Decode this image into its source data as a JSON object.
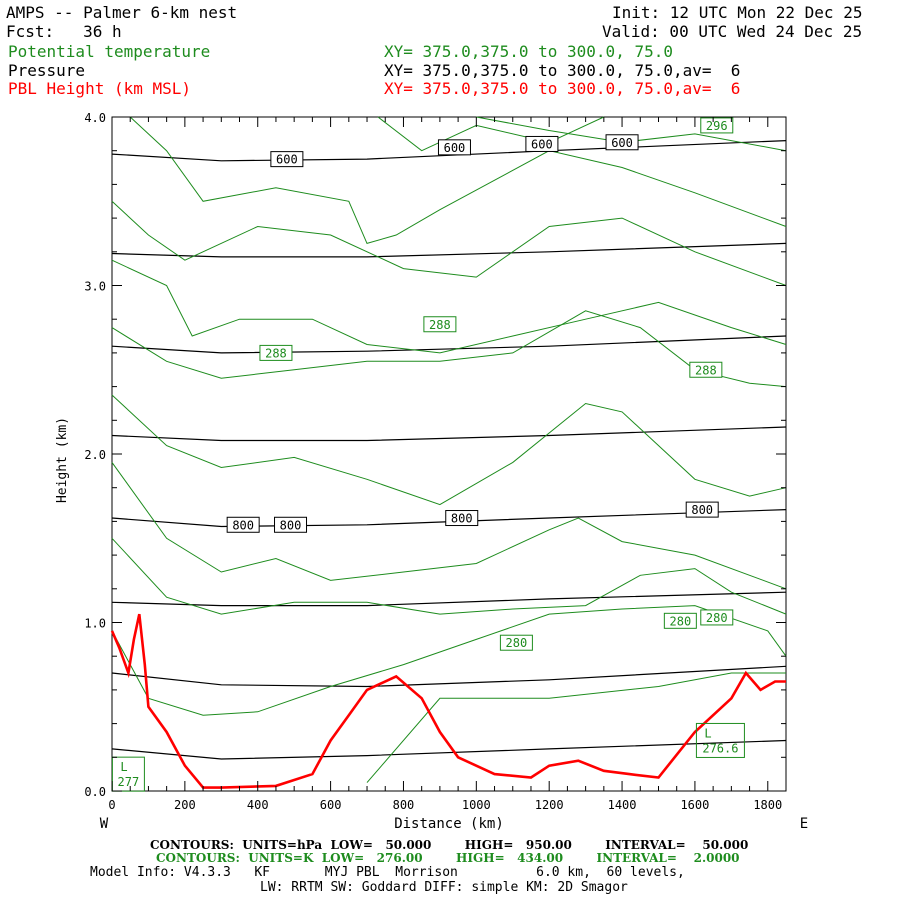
{
  "header": {
    "title": "AMPS -- Palmer 6-km nest",
    "forecast": "Fcst:   36 h",
    "init": "Init: 12 UTC Mon 22 Dec 25",
    "valid": "Valid: 00 UTC Wed 24 Dec 25",
    "field1_name": "Potential temperature",
    "field1_xy": "XY= 375.0,375.0 to 300.0, 75.0",
    "field2_name": "Pressure",
    "field2_xy": "XY= 375.0,375.0 to 300.0, 75.0,av=  6",
    "field3_name": "PBL Height (km MSL)",
    "field3_xy": "XY= 375.0,375.0 to 300.0, 75.0,av=  6"
  },
  "footer": {
    "pressure_contours": "CONTOURS:  UNITS=hPa  LOW=   50.000        HIGH=   950.00        INTERVAL=    50.000",
    "theta_contours": "CONTOURS:  UNITS=K  LOW=   276.00        HIGH=   434.00        INTERVAL=    2.0000",
    "model_info": "Model Info: V4.3.3   KF       MYJ PBL  Morrison          6.0 km,  60 levels,",
    "model_info2": "LW: RRTM SW: Goddard DIFF: simple KM: 2D Smagor"
  },
  "colors": {
    "theta": "#1e8c1e",
    "pressure": "#000000",
    "pbl": "#ff0000"
  },
  "chart_data": {
    "type": "line",
    "title": "AMPS -- Palmer 6-km nest",
    "xlabel": "Distance (km)",
    "ylabel": "Height (km)",
    "xlim": [
      0,
      1850
    ],
    "ylim": [
      0,
      4.0
    ],
    "x_ticks": [
      0,
      200,
      400,
      600,
      800,
      1000,
      1200,
      1400,
      1600,
      1800
    ],
    "y_ticks": [
      0.0,
      1.0,
      2.0,
      3.0,
      4.0
    ],
    "west_label": "W",
    "east_label": "E",
    "pressure_series": [
      {
        "name": "p1",
        "values": [
          [
            0,
            0.25
          ],
          [
            300,
            0.19
          ],
          [
            700,
            0.21
          ],
          [
            1200,
            0.25
          ],
          [
            1850,
            0.3
          ]
        ]
      },
      {
        "name": "p2",
        "values": [
          [
            0,
            0.7
          ],
          [
            300,
            0.63
          ],
          [
            700,
            0.62
          ],
          [
            1200,
            0.66
          ],
          [
            1850,
            0.74
          ]
        ]
      },
      {
        "name": "p3",
        "values": [
          [
            0,
            1.12
          ],
          [
            300,
            1.1
          ],
          [
            700,
            1.1
          ],
          [
            1200,
            1.14
          ],
          [
            1850,
            1.18
          ]
        ]
      },
      {
        "name": "p4",
        "values": [
          [
            0,
            1.62
          ],
          [
            300,
            1.57
          ],
          [
            700,
            1.58
          ],
          [
            1200,
            1.62
          ],
          [
            1850,
            1.67
          ]
        ]
      },
      {
        "name": "p5",
        "values": [
          [
            0,
            2.11
          ],
          [
            300,
            2.08
          ],
          [
            700,
            2.08
          ],
          [
            1200,
            2.11
          ],
          [
            1850,
            2.16
          ]
        ]
      },
      {
        "name": "p6",
        "values": [
          [
            0,
            2.64
          ],
          [
            300,
            2.6
          ],
          [
            700,
            2.61
          ],
          [
            1200,
            2.64
          ],
          [
            1850,
            2.7
          ]
        ]
      },
      {
        "name": "p7",
        "values": [
          [
            0,
            3.19
          ],
          [
            300,
            3.17
          ],
          [
            700,
            3.17
          ],
          [
            1200,
            3.2
          ],
          [
            1850,
            3.25
          ]
        ]
      },
      {
        "name": "p8",
        "values": [
          [
            0,
            3.78
          ],
          [
            300,
            3.74
          ],
          [
            700,
            3.75
          ],
          [
            1200,
            3.8
          ],
          [
            1850,
            3.86
          ]
        ]
      }
    ],
    "theta_series": [
      {
        "name": "t1",
        "values": [
          [
            700,
            0.05
          ],
          [
            900,
            0.55
          ],
          [
            1200,
            0.55
          ],
          [
            1500,
            0.62
          ],
          [
            1700,
            0.7
          ],
          [
            1850,
            0.7
          ]
        ]
      },
      {
        "name": "t2",
        "values": [
          [
            0,
            0.95
          ],
          [
            100,
            0.55
          ],
          [
            250,
            0.45
          ],
          [
            400,
            0.47
          ],
          [
            600,
            0.62
          ],
          [
            800,
            0.75
          ],
          [
            1000,
            0.9
          ],
          [
            1200,
            1.05
          ],
          [
            1400,
            1.08
          ],
          [
            1600,
            1.1
          ],
          [
            1800,
            0.95
          ],
          [
            1850,
            0.8
          ]
        ]
      },
      {
        "name": "t3",
        "values": [
          [
            0,
            1.5
          ],
          [
            150,
            1.15
          ],
          [
            300,
            1.05
          ],
          [
            500,
            1.12
          ],
          [
            700,
            1.12
          ],
          [
            900,
            1.05
          ],
          [
            1100,
            1.08
          ],
          [
            1300,
            1.1
          ],
          [
            1450,
            1.28
          ],
          [
            1600,
            1.32
          ],
          [
            1700,
            1.18
          ],
          [
            1850,
            1.05
          ]
        ]
      },
      {
        "name": "t4",
        "values": [
          [
            0,
            1.95
          ],
          [
            150,
            1.5
          ],
          [
            300,
            1.3
          ],
          [
            450,
            1.38
          ],
          [
            600,
            1.25
          ],
          [
            800,
            1.3
          ],
          [
            1000,
            1.35
          ],
          [
            1200,
            1.55
          ],
          [
            1280,
            1.62
          ],
          [
            1400,
            1.48
          ],
          [
            1600,
            1.4
          ],
          [
            1750,
            1.28
          ],
          [
            1850,
            1.2
          ]
        ]
      },
      {
        "name": "t5",
        "values": [
          [
            0,
            2.35
          ],
          [
            150,
            2.05
          ],
          [
            300,
            1.92
          ],
          [
            500,
            1.98
          ],
          [
            700,
            1.85
          ],
          [
            900,
            1.7
          ],
          [
            1100,
            1.95
          ],
          [
            1300,
            2.3
          ],
          [
            1400,
            2.25
          ],
          [
            1600,
            1.85
          ],
          [
            1750,
            1.75
          ],
          [
            1850,
            1.8
          ]
        ]
      },
      {
        "name": "t6",
        "values": [
          [
            0,
            2.75
          ],
          [
            150,
            2.55
          ],
          [
            300,
            2.45
          ],
          [
            500,
            2.5
          ],
          [
            700,
            2.55
          ],
          [
            900,
            2.55
          ],
          [
            1100,
            2.6
          ],
          [
            1300,
            2.85
          ],
          [
            1450,
            2.75
          ],
          [
            1600,
            2.5
          ],
          [
            1750,
            2.42
          ],
          [
            1850,
            2.4
          ]
        ]
      },
      {
        "name": "t7",
        "values": [
          [
            0,
            3.15
          ],
          [
            150,
            3.0
          ],
          [
            220,
            2.7
          ],
          [
            350,
            2.8
          ],
          [
            550,
            2.8
          ],
          [
            700,
            2.65
          ],
          [
            900,
            2.6
          ],
          [
            1100,
            2.7
          ],
          [
            1300,
            2.8
          ],
          [
            1500,
            2.9
          ],
          [
            1700,
            2.75
          ],
          [
            1850,
            2.65
          ]
        ]
      },
      {
        "name": "t8",
        "values": [
          [
            0,
            3.5
          ],
          [
            100,
            3.3
          ],
          [
            200,
            3.15
          ],
          [
            400,
            3.35
          ],
          [
            600,
            3.3
          ],
          [
            800,
            3.1
          ],
          [
            1000,
            3.05
          ],
          [
            1200,
            3.35
          ],
          [
            1400,
            3.4
          ],
          [
            1600,
            3.2
          ],
          [
            1850,
            3.0
          ]
        ]
      },
      {
        "name": "t9",
        "values": [
          [
            50,
            4.0
          ],
          [
            150,
            3.8
          ],
          [
            250,
            3.5
          ],
          [
            450,
            3.58
          ],
          [
            650,
            3.5
          ],
          [
            700,
            3.25
          ],
          [
            780,
            3.3
          ],
          [
            900,
            3.45
          ],
          [
            1200,
            3.8
          ],
          [
            1400,
            3.7
          ],
          [
            1600,
            3.55
          ],
          [
            1850,
            3.35
          ]
        ]
      },
      {
        "name": "t10",
        "values": [
          [
            730,
            4.0
          ],
          [
            850,
            3.8
          ],
          [
            1000,
            3.95
          ],
          [
            1200,
            3.85
          ],
          [
            1350,
            4.0
          ]
        ]
      },
      {
        "name": "t11",
        "values": [
          [
            1000,
            4.0
          ],
          [
            1200,
            3.92
          ],
          [
            1400,
            3.85
          ],
          [
            1600,
            3.9
          ],
          [
            1850,
            3.8
          ]
        ]
      }
    ],
    "pbl_height": {
      "values": [
        [
          0,
          0.95
        ],
        [
          20,
          0.85
        ],
        [
          45,
          0.7
        ],
        [
          60,
          0.9
        ],
        [
          75,
          1.05
        ],
        [
          90,
          0.75
        ],
        [
          100,
          0.5
        ],
        [
          150,
          0.35
        ],
        [
          200,
          0.15
        ],
        [
          250,
          0.02
        ],
        [
          300,
          0.02
        ],
        [
          450,
          0.03
        ],
        [
          550,
          0.1
        ],
        [
          600,
          0.3
        ],
        [
          650,
          0.45
        ],
        [
          700,
          0.6
        ],
        [
          780,
          0.68
        ],
        [
          850,
          0.55
        ],
        [
          900,
          0.35
        ],
        [
          950,
          0.2
        ],
        [
          1050,
          0.1
        ],
        [
          1150,
          0.08
        ],
        [
          1200,
          0.15
        ],
        [
          1280,
          0.18
        ],
        [
          1350,
          0.12
        ],
        [
          1420,
          0.1
        ],
        [
          1500,
          0.08
        ],
        [
          1600,
          0.35
        ],
        [
          1700,
          0.55
        ],
        [
          1740,
          0.7
        ],
        [
          1780,
          0.6
        ],
        [
          1820,
          0.65
        ],
        [
          1850,
          0.65
        ]
      ]
    },
    "pressure_labels": [
      {
        "text": "600",
        "x": 480,
        "y": 3.75
      },
      {
        "text": "600",
        "x": 940,
        "y": 3.82
      },
      {
        "text": "600",
        "x": 1180,
        "y": 3.84
      },
      {
        "text": "600",
        "x": 1400,
        "y": 3.85
      },
      {
        "text": "800",
        "x": 360,
        "y": 1.58
      },
      {
        "text": "800",
        "x": 490,
        "y": 1.58
      },
      {
        "text": "800",
        "x": 960,
        "y": 1.62
      },
      {
        "text": "800",
        "x": 1620,
        "y": 1.67
      }
    ],
    "theta_labels": [
      {
        "text": "296",
        "x": 1660,
        "y": 3.95
      },
      {
        "text": "288",
        "x": 900,
        "y": 2.77
      },
      {
        "text": "288",
        "x": 450,
        "y": 2.6
      },
      {
        "text": "288",
        "x": 1630,
        "y": 2.5
      },
      {
        "text": "280",
        "x": 1110,
        "y": 0.88
      },
      {
        "text": "280",
        "x": 1560,
        "y": 1.01
      },
      {
        "text": "280",
        "x": 1660,
        "y": 1.03
      }
    ],
    "extrema_labels": [
      {
        "letter": "L",
        "value": "277",
        "x": 45,
        "y": 0.1
      },
      {
        "letter": "L",
        "value": "276.6",
        "x": 1670,
        "y": 0.3
      }
    ]
  }
}
